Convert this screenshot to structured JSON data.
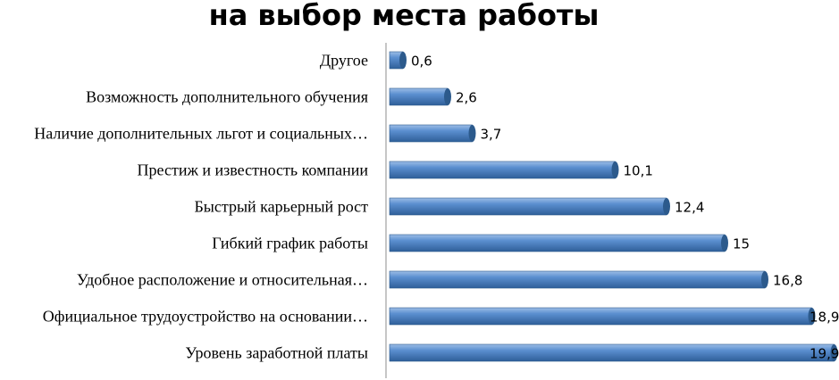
{
  "chart_data": {
    "type": "bar",
    "orientation": "horizontal",
    "title": "на выбор места работы",
    "categories": [
      "Другое",
      "Возможность дополнительного обучения",
      "Наличие дополнительных льгот и социальных…",
      "Престиж и известность компании",
      "Быстрый карьерный рост",
      "Гибкий график работы",
      "Удобное расположение и относительная…",
      "Официальное трудоустройство на основании…",
      "Уровень заработной платы"
    ],
    "values": [
      0.6,
      2.6,
      3.7,
      10.1,
      12.4,
      15,
      16.8,
      18.9,
      19.9
    ],
    "value_labels": [
      "0,6",
      "2,6",
      "3,7",
      "10,1",
      "12,4",
      "15",
      "16,8",
      "18,9",
      "19,9"
    ],
    "xlim": [
      0,
      20
    ],
    "bar_color": "#4f81bd",
    "bar_color_dark": "#2c5a8c",
    "bar_color_light": "#8fb3e0",
    "grid": false,
    "legend": "none"
  }
}
